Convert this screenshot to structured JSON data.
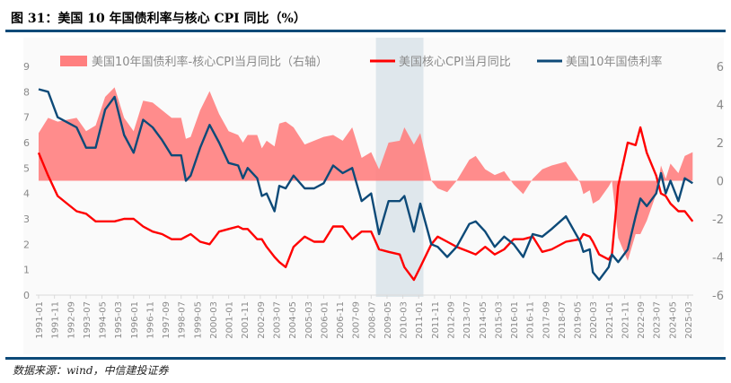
{
  "title": "图 31：美国 10 年国债利率与核心 CPI 同比（%）",
  "source": "数据来源：wind，中信建投证券",
  "chart_data": {
    "type": "line",
    "title": "图 31：美国 10 年国债利率与核心 CPI 同比（%）",
    "xlabel": "",
    "ylabel": "",
    "ylim_left": [
      0,
      9
    ],
    "ylim_right": [
      -6,
      6
    ],
    "left_ticks": [
      "0",
      "1",
      "2",
      "3",
      "4",
      "5",
      "6",
      "7",
      "8",
      "9"
    ],
    "right_ticks": [
      "-6",
      "-4",
      "-2",
      "0",
      "2",
      "4",
      "6"
    ],
    "x_ticks": [
      "1991-01",
      "1991-11",
      "1992-09",
      "1993-07",
      "1994-05",
      "1995-03",
      "1996-01",
      "1996-11",
      "1997-09",
      "1998-07",
      "1999-05",
      "2000-03",
      "2001-01",
      "2001-11",
      "2002-09",
      "2003-07",
      "2004-05",
      "2005-03",
      "2006-01",
      "2006-11",
      "2007-09",
      "2008-07",
      "2009-05",
      "2010-03",
      "2011-01",
      "2011-11",
      "2012-09",
      "2013-07",
      "2014-05",
      "2015-03",
      "2016-01",
      "2016-11",
      "2017-09",
      "2018-07",
      "2019-05",
      "2020-03",
      "2021-01",
      "2021-11",
      "2022-09",
      "2023-07",
      "2024-05",
      "2025-03"
    ],
    "grid": false,
    "legend_position": "top",
    "shaded_period": {
      "start": "2008-10",
      "end": "2011-04",
      "color": "#dfe7ec"
    },
    "dates": [
      "1991-01",
      "1991-07",
      "1992-01",
      "1992-07",
      "1993-01",
      "1993-07",
      "1994-01",
      "1994-07",
      "1995-01",
      "1995-07",
      "1996-01",
      "1996-07",
      "1997-01",
      "1997-07",
      "1998-01",
      "1998-07",
      "1998-10",
      "1999-01",
      "1999-07",
      "2000-01",
      "2000-07",
      "2001-01",
      "2001-07",
      "2001-10",
      "2002-01",
      "2002-07",
      "2002-10",
      "2003-01",
      "2003-06",
      "2003-09",
      "2004-01",
      "2004-06",
      "2005-01",
      "2005-07",
      "2006-01",
      "2006-07",
      "2007-01",
      "2007-07",
      "2008-01",
      "2008-07",
      "2008-12",
      "2009-06",
      "2010-01",
      "2010-04",
      "2010-10",
      "2011-02",
      "2011-09",
      "2012-01",
      "2012-07",
      "2013-01",
      "2013-09",
      "2014-01",
      "2014-07",
      "2015-01",
      "2015-07",
      "2016-01",
      "2016-07",
      "2017-01",
      "2017-07",
      "2018-01",
      "2018-10",
      "2019-07",
      "2019-09",
      "2020-01",
      "2020-03",
      "2020-07",
      "2021-01",
      "2021-03",
      "2021-07",
      "2022-01",
      "2022-06",
      "2022-09",
      "2023-01",
      "2023-07",
      "2023-10",
      "2024-01",
      "2024-04",
      "2024-09",
      "2025-01",
      "2025-06"
    ],
    "series": [
      {
        "name": "美国10年国债利率-核心CPI当月同比（右轴）",
        "type": "area",
        "axis": "right",
        "color": "#ff7f7f",
        "values": [
          2.5,
          3.3,
          3.1,
          3.2,
          3.3,
          2.6,
          2.9,
          4.4,
          4.9,
          3.3,
          2.6,
          4.2,
          4.1,
          3.7,
          3.3,
          3.3,
          2.2,
          2.3,
          3.7,
          4.7,
          3.5,
          2.6,
          2.4,
          2.0,
          2.4,
          2.4,
          1.7,
          2.1,
          1.8,
          3.0,
          3.1,
          2.8,
          1.9,
          2.1,
          2.3,
          2.4,
          2.1,
          2.8,
          1.2,
          1.5,
          0.6,
          2.0,
          2.1,
          2.8,
          1.9,
          2.5,
          0.0,
          -0.4,
          -0.6,
          0.0,
          1.1,
          1.3,
          0.6,
          0.3,
          0.5,
          -0.2,
          -0.7,
          0.1,
          0.6,
          0.8,
          1.0,
          -0.1,
          -0.7,
          -0.5,
          -1.2,
          -1.0,
          -0.3,
          0.0,
          -3.0,
          -4.2,
          -2.8,
          -2.8,
          -2.1,
          -0.7,
          0.8,
          0.1,
          0.9,
          0.4,
          1.3,
          1.5
        ]
      },
      {
        "name": "美国核心CPI当月同比",
        "type": "line",
        "axis": "left",
        "color": "#ff0000",
        "values": [
          5.6,
          4.7,
          3.9,
          3.6,
          3.3,
          3.2,
          2.9,
          2.9,
          2.9,
          3.0,
          3.0,
          2.7,
          2.5,
          2.4,
          2.2,
          2.2,
          2.3,
          2.4,
          2.1,
          2.0,
          2.5,
          2.6,
          2.7,
          2.6,
          2.6,
          2.2,
          2.2,
          1.9,
          1.5,
          1.3,
          1.1,
          1.9,
          2.3,
          2.1,
          2.1,
          2.7,
          2.7,
          2.2,
          2.5,
          2.5,
          1.8,
          1.7,
          1.6,
          1.1,
          0.6,
          1.1,
          2.0,
          2.3,
          2.1,
          1.9,
          1.7,
          1.6,
          1.9,
          1.6,
          1.8,
          2.2,
          2.2,
          2.3,
          1.7,
          1.8,
          2.1,
          2.2,
          2.4,
          2.3,
          2.1,
          1.6,
          1.4,
          1.6,
          4.3,
          6.0,
          5.9,
          6.6,
          5.6,
          4.7,
          4.0,
          3.9,
          3.6,
          3.3,
          3.3,
          2.9
        ]
      },
      {
        "name": "美国10年国债利率",
        "type": "line",
        "axis": "left",
        "color": "#0d4a78",
        "values": [
          8.1,
          8.0,
          7.0,
          6.8,
          6.6,
          5.8,
          5.8,
          7.3,
          7.8,
          6.3,
          5.6,
          6.9,
          6.6,
          6.1,
          5.5,
          5.5,
          4.5,
          4.7,
          5.8,
          6.7,
          6.0,
          5.2,
          5.1,
          4.6,
          5.0,
          4.6,
          3.9,
          4.0,
          3.3,
          4.3,
          4.2,
          4.7,
          4.2,
          4.2,
          4.4,
          5.1,
          4.8,
          5.0,
          3.7,
          4.0,
          2.4,
          3.7,
          3.7,
          3.9,
          2.5,
          3.6,
          2.0,
          1.9,
          1.5,
          1.9,
          2.8,
          2.9,
          2.5,
          1.9,
          2.3,
          2.0,
          1.5,
          2.4,
          2.3,
          2.6,
          3.1,
          2.1,
          1.7,
          1.8,
          0.9,
          0.6,
          1.1,
          1.6,
          1.3,
          1.8,
          3.1,
          3.8,
          3.5,
          4.0,
          4.8,
          4.0,
          4.5,
          3.7,
          4.6,
          4.4
        ]
      }
    ]
  }
}
